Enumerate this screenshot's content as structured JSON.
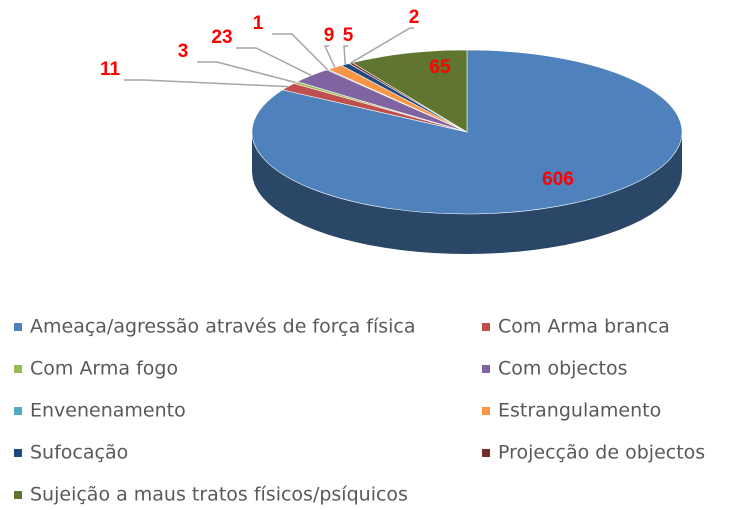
{
  "chart_data": {
    "type": "pie",
    "categories": [
      "Ameaça/agressão através de força física",
      "Com Arma branca",
      "Com Arma fogo",
      "Com objectos",
      "Envenenamento",
      "Estrangulamento",
      "Sufocação",
      "Projecção de objectos",
      "Sujeição a maus tratos físicos/psíquicos"
    ],
    "values": [
      606,
      11,
      3,
      23,
      1,
      9,
      5,
      2,
      65
    ],
    "colors": [
      "#4f81bd",
      "#c0504d",
      "#9bbb59",
      "#8064a2",
      "#4bacc6",
      "#f79646",
      "#1f497d",
      "#772c2a",
      "#5f7530"
    ],
    "legend": "bottom"
  }
}
